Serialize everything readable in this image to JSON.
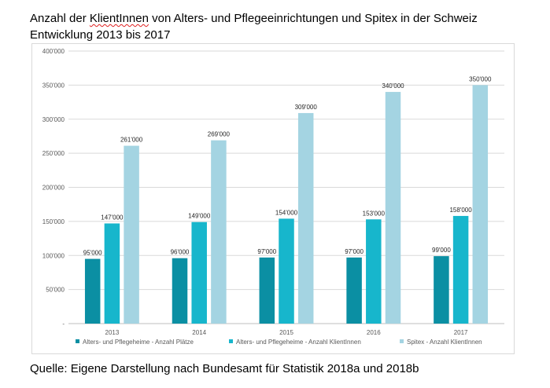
{
  "title_prefix": "Anzahl der ",
  "title_word_flagged": "KlientInnen",
  "title_suffix": " von Alters- und Pflegeeinrichtungen und Spitex in der Schweiz",
  "subtitle": "Entwicklung 2013 bis 2017",
  "source": "Quelle: Eigene Darstellung nach Bundesamt für Statistik 2018a und 2018b",
  "chart_data": {
    "type": "bar",
    "categories": [
      "2013",
      "2014",
      "2015",
      "2016",
      "2017"
    ],
    "series": [
      {
        "name": "Alters- und Pflegeheime - Anzahl Plätze",
        "color": "#0b8fa3",
        "values": [
          95000,
          96000,
          97000,
          97000,
          99000
        ],
        "labels": [
          "95'000",
          "96'000",
          "97'000",
          "97'000",
          "99'000"
        ]
      },
      {
        "name": "Alters- und Pflegeheime - Anzahl KlientInnen",
        "color": "#17b6cc",
        "values": [
          147000,
          149000,
          154000,
          153000,
          158000
        ],
        "labels": [
          "147'000",
          "149'000",
          "154'000",
          "153'000",
          "158'000"
        ]
      },
      {
        "name": "Spitex - Anzahl KlientInnen",
        "color": "#a4d4e2",
        "values": [
          261000,
          269000,
          309000,
          340000,
          350000
        ],
        "labels": [
          "261'000",
          "269'000",
          "309'000",
          "340'000",
          "350'000"
        ]
      }
    ],
    "ylim": [
      0,
      400000
    ],
    "yticks": [
      0,
      50000,
      100000,
      150000,
      200000,
      250000,
      300000,
      350000,
      400000
    ],
    "ytick_labels": [
      "-",
      "50'000",
      "100'000",
      "150'000",
      "200'000",
      "250'000",
      "300'000",
      "350'000",
      "400'000"
    ],
    "grid": true,
    "legend_position": "bottom"
  }
}
